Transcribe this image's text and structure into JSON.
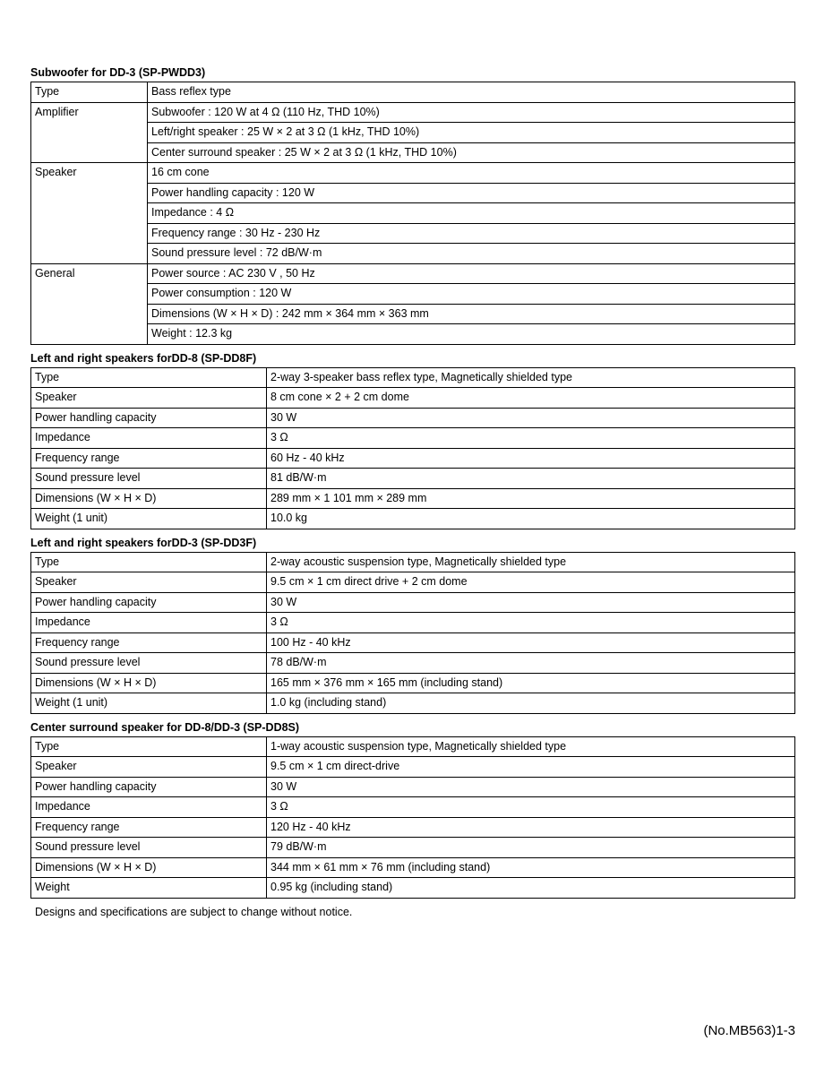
{
  "section1": {
    "title": "Subwoofer for DD-3 (SP-PWDD3)",
    "col1_width": 130,
    "rows": [
      {
        "k": "Type",
        "vals": [
          "Bass reflex type"
        ]
      },
      {
        "k": "Amplifier",
        "vals": [
          "Subwoofer : 120 W at 4 Ω (110 Hz, THD 10%)",
          "Left/right speaker : 25 W × 2 at 3 Ω (1 kHz, THD 10%)",
          "Center surround speaker : 25 W × 2 at 3 Ω (1 kHz, THD 10%)"
        ]
      },
      {
        "k": "Speaker",
        "vals": [
          "16 cm cone",
          "Power handling capacity : 120 W",
          "Impedance : 4 Ω",
          "Frequency range : 30 Hz - 230 Hz",
          "Sound pressure level : 72 dB/W·m"
        ]
      },
      {
        "k": "General",
        "vals": [
          "Power source : AC 230 V  , 50 Hz",
          "Power consumption : 120 W",
          "Dimensions (W × H × D) : 242 mm × 364 mm × 363 mm",
          "Weight : 12.3 kg"
        ]
      }
    ]
  },
  "section2": {
    "title": "Left and right speakers forDD-8 (SP-DD8F)",
    "col1_width": 263,
    "rows": [
      {
        "k": "Type",
        "v": "2-way 3-speaker bass reflex type, Magnetically shielded type"
      },
      {
        "k": "Speaker",
        "v": "8 cm cone × 2 + 2 cm dome"
      },
      {
        "k": "Power handling capacity",
        "v": "30 W"
      },
      {
        "k": "Impedance",
        "v": "3 Ω"
      },
      {
        "k": "Frequency range",
        "v": "60 Hz - 40 kHz"
      },
      {
        "k": "Sound pressure level",
        "v": "81 dB/W·m"
      },
      {
        "k": "Dimensions (W × H × D)",
        "v": "289 mm × 1 101 mm × 289 mm"
      },
      {
        "k": "Weight (1 unit)",
        "v": "10.0 kg"
      }
    ]
  },
  "section3": {
    "title": "Left and right speakers forDD-3 (SP-DD3F)",
    "col1_width": 263,
    "rows": [
      {
        "k": "Type",
        "v": "2-way acoustic suspension type, Magnetically shielded type"
      },
      {
        "k": "Speaker",
        "v": "9.5 cm × 1 cm direct drive + 2 cm dome"
      },
      {
        "k": "Power handling capacity",
        "v": "30 W"
      },
      {
        "k": "Impedance",
        "v": "3 Ω"
      },
      {
        "k": "Frequency range",
        "v": "100 Hz - 40 kHz"
      },
      {
        "k": "Sound pressure level",
        "v": "78 dB/W·m"
      },
      {
        "k": "Dimensions (W × H × D)",
        "v": "165 mm × 376 mm × 165 mm (including stand)"
      },
      {
        "k": "Weight (1 unit)",
        "v": "1.0 kg (including stand)"
      }
    ]
  },
  "section4": {
    "title": "Center surround speaker for DD-8/DD-3 (SP-DD8S)",
    "col1_width": 263,
    "rows": [
      {
        "k": "Type",
        "v": "1-way acoustic suspension type, Magnetically shielded type"
      },
      {
        "k": "Speaker",
        "v": "9.5 cm × 1 cm direct-drive"
      },
      {
        "k": "Power handling capacity",
        "v": "30 W"
      },
      {
        "k": "Impedance",
        "v": "3 Ω"
      },
      {
        "k": "Frequency range",
        "v": "120 Hz - 40 kHz"
      },
      {
        "k": "Sound pressure level",
        "v": "79 dB/W·m"
      },
      {
        "k": "Dimensions (W × H × D)",
        "v": "344 mm × 61 mm × 76 mm (including stand)"
      },
      {
        "k": "Weight",
        "v": "0.95 kg (including stand)"
      }
    ]
  },
  "footer_note": "Designs and specifications are subject to change without notice.",
  "page_number": "(No.MB563)1-3"
}
